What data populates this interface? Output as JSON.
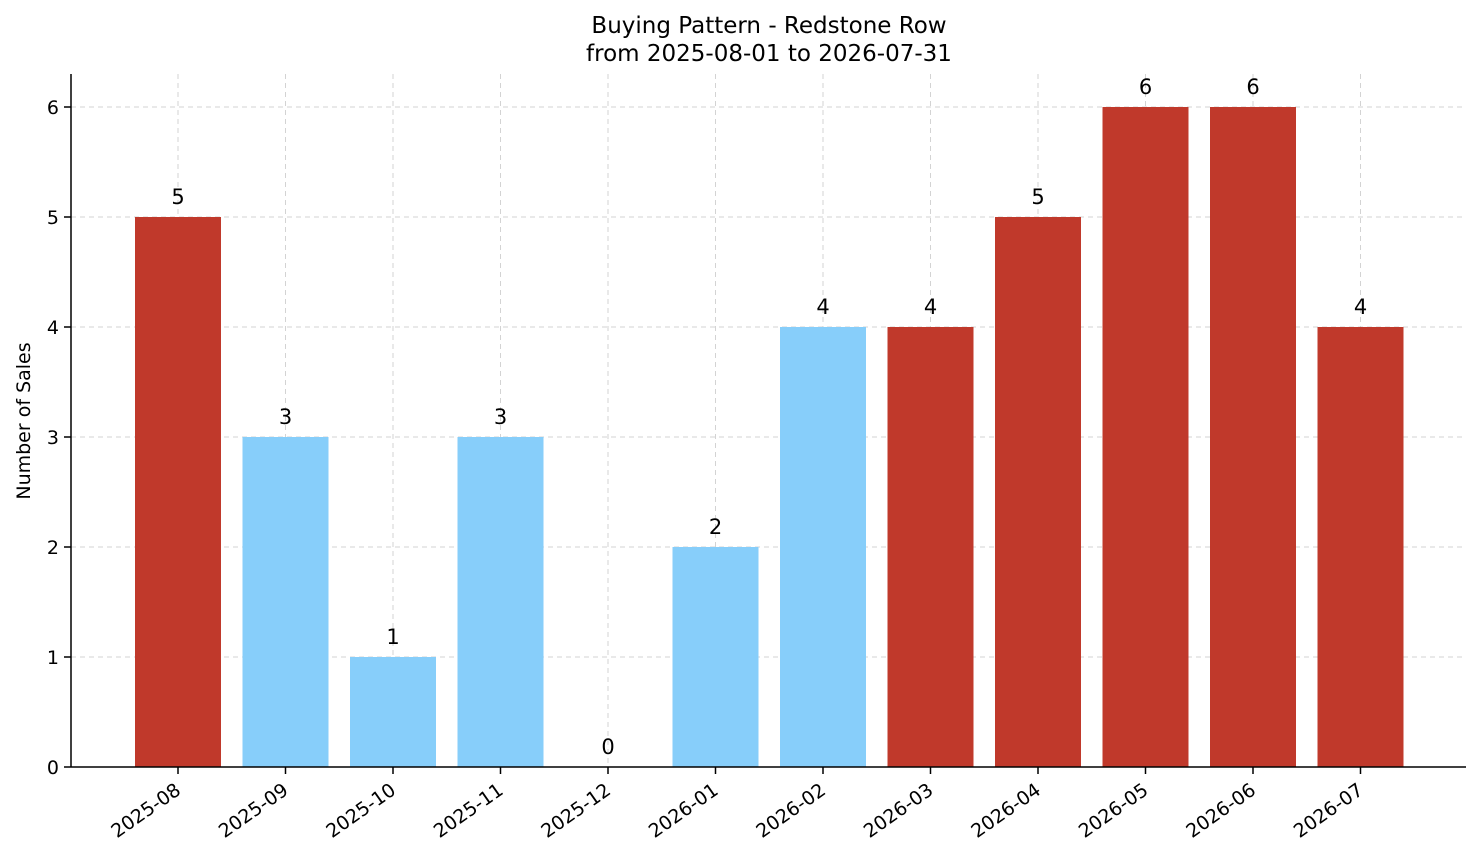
{
  "chart_data": {
    "type": "bar",
    "title": "Buying Pattern - Redstone Row",
    "subtitle": "from 2025-08-01 to 2026-07-31",
    "xlabel": "",
    "ylabel": "Number of Sales",
    "categories": [
      "2025-08",
      "2025-09",
      "2025-10",
      "2025-11",
      "2025-12",
      "2026-01",
      "2026-02",
      "2026-03",
      "2026-04",
      "2026-05",
      "2026-06",
      "2026-07"
    ],
    "values": [
      5,
      3,
      1,
      3,
      0,
      2,
      4,
      4,
      5,
      6,
      6,
      4
    ],
    "bar_colors": [
      "#c0392b",
      "#87cefa",
      "#87cefa",
      "#87cefa",
      "#87cefa",
      "#87cefa",
      "#87cefa",
      "#c0392b",
      "#c0392b",
      "#c0392b",
      "#c0392b",
      "#c0392b"
    ],
    "ylim": [
      0,
      6.3
    ],
    "yticks": [
      0,
      1,
      2,
      3,
      4,
      5,
      6
    ],
    "grid": true,
    "legend": "none"
  }
}
